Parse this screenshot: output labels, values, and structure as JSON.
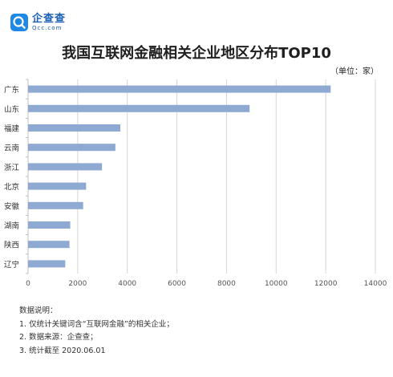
{
  "brand": {
    "name_cn": "企查查",
    "name_en": "Qcc.com"
  },
  "unit_label": "（单位：家）",
  "chart_data": {
    "type": "bar",
    "orientation": "horizontal",
    "title": "我国互联网金融相关企业地区分布TOP10",
    "categories": [
      "广东",
      "山东",
      "福建",
      "云南",
      "浙江",
      "北京",
      "安徽",
      "湖南",
      "陕西",
      "辽宁"
    ],
    "values": [
      12200,
      8930,
      3720,
      3520,
      2980,
      2340,
      2220,
      1700,
      1670,
      1500
    ],
    "xlim": [
      0,
      14000
    ],
    "xticks": [
      0,
      2000,
      4000,
      6000,
      8000,
      10000,
      12000,
      14000
    ],
    "grid": true,
    "bar_color": "#8eaad3"
  },
  "notes": {
    "heading": "数据说明：",
    "items": [
      "1. 仅统计关键词含“互联网金融”的相关企业；",
      "2. 数据来源：企查查；",
      "3. 统计截至 2020.06.01"
    ]
  }
}
